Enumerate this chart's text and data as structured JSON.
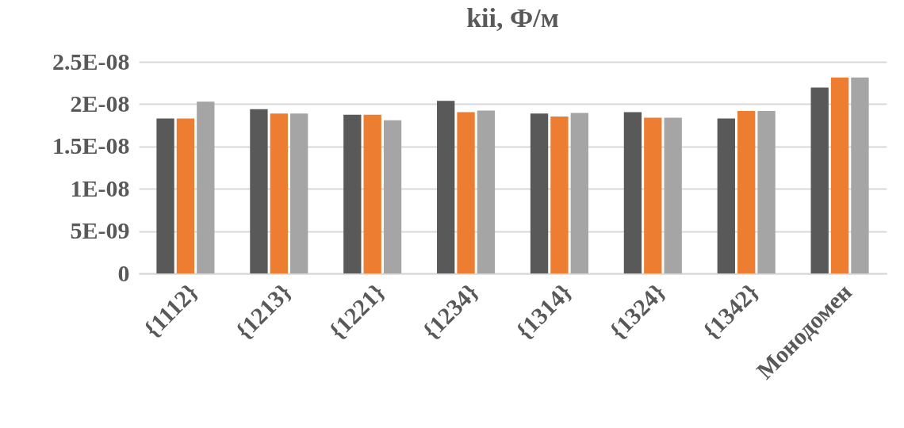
{
  "chart_data": {
    "type": "bar",
    "title": "kii, Ф/м",
    "categories": [
      "{1112}",
      "{1213}",
      "{1221}",
      "{1234}",
      "{1314}",
      "{1324}",
      "{1342}",
      "Монодомен"
    ],
    "series": [
      {
        "color": "#595959",
        "values": [
          1.83e-08,
          1.94e-08,
          1.875e-08,
          2.04e-08,
          1.89e-08,
          1.905e-08,
          1.83e-08,
          2.195e-08
        ]
      },
      {
        "color": "#ed7d31",
        "values": [
          1.83e-08,
          1.89e-08,
          1.875e-08,
          1.905e-08,
          1.855e-08,
          1.84e-08,
          1.92e-08,
          2.315e-08
        ]
      },
      {
        "color": "#a5a5a5",
        "values": [
          2.03e-08,
          1.89e-08,
          1.81e-08,
          1.925e-08,
          1.895e-08,
          1.84e-08,
          1.92e-08,
          2.315e-08
        ]
      }
    ],
    "ylim": [
      0,
      2.5e-08
    ],
    "yticks": [
      0,
      {
        "value": 5e-09,
        "label": "5E-09"
      },
      {
        "value": 1e-08,
        "label": "1E-08"
      },
      {
        "value": 1.5e-08,
        "label": "1.5E-08"
      },
      {
        "value": 2e-08,
        "label": "2E-08"
      },
      {
        "value": 2.5e-08,
        "label": "2.5E-08"
      }
    ],
    "grid": "y",
    "legend": false
  }
}
